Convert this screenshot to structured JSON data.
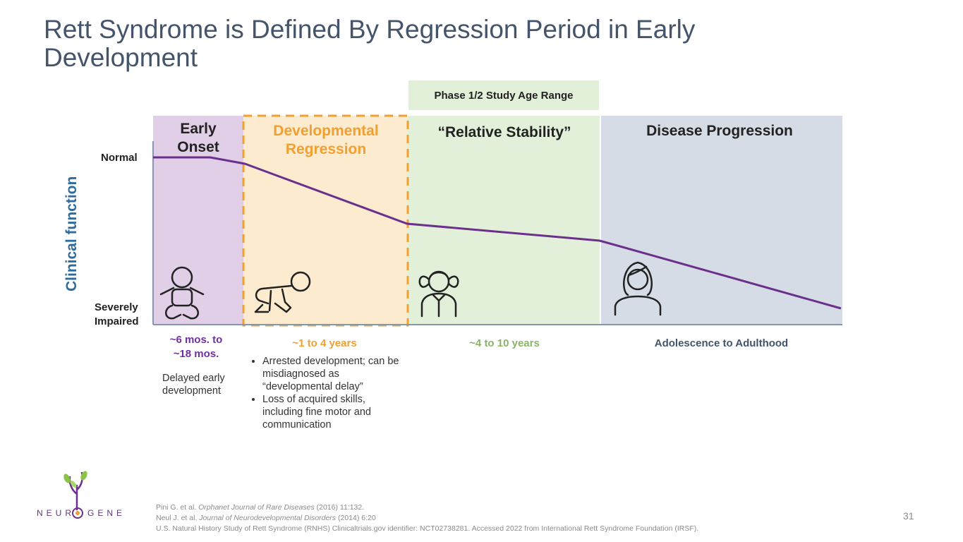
{
  "slide": {
    "title": "Rett Syndrome is Defined By Regression Period in Early Development",
    "page_number": "31"
  },
  "phase_label": "Phase 1/2 Study Age Range",
  "y_axis": {
    "label": "Clinical function",
    "top": "Normal",
    "bottom": "Severely Impaired"
  },
  "stages": [
    {
      "name": "Early Onset",
      "age": "~6 mos. to ~18 mos.",
      "color": "#e1cfe7",
      "title_color": "#222222",
      "age_color": "#7030a0",
      "icon": "baby-sitting-icon",
      "description": "Delayed early development"
    },
    {
      "name": "Developmental Regression",
      "age": "~1 to 4 years",
      "color": "#fdebd0",
      "title_color": "#f0a030",
      "age_color": "#f0a030",
      "icon": "crawling-baby-icon",
      "bullets": [
        "Arrested development; can be misdiagnosed as “developmental delay”",
        "Loss of acquired skills, including fine motor and communication"
      ]
    },
    {
      "name": "“Relative Stability”",
      "age": "~4 to 10 years",
      "color": "#e2f0d9",
      "title_color": "#222222",
      "age_color": "#8ab26a",
      "icon": "girl-icon"
    },
    {
      "name": "Disease Progression",
      "age": "Adolescence to Adulthood",
      "color": "#d6dce5",
      "title_color": "#222222",
      "age_color": "#44546a",
      "icon": "woman-icon"
    }
  ],
  "colors": {
    "line": "#6b2f8c",
    "dashed_border": "#f0a030",
    "axis": "#8497b0",
    "title": "#44546a"
  },
  "logo": {
    "text_left": "NEUR",
    "text_right": "GENE"
  },
  "references": {
    "ref1_authors": "Pini G. et al. ",
    "ref1_journal": "Orphanet Journal of Rare Diseases",
    "ref1_rest": " (2016) 11:132.",
    "ref2_authors": "Neul J. et al. ",
    "ref2_journal": "Journal of Neurodevelopmental Disorders",
    "ref2_rest": " (2014) 6:20",
    "ref3": "U.S. Natural History Study of Rett Syndrome (RNHS) Clinicaltrials.gov identifier: NCT02738281. Accessed 2022 from International Rett Syndrome Foundation (IRSF)."
  }
}
